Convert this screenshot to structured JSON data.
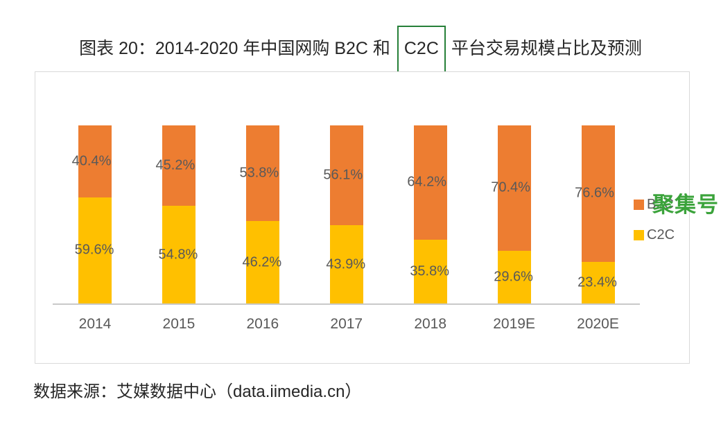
{
  "title": {
    "prefix": "图表 20：2014-2020 年中国网购 B2C 和 ",
    "boxed": "C2C",
    "suffix": " 平台交易规模占比及预测"
  },
  "watermark": "聚集号",
  "source": "数据来源：艾媒数据中心（data.iimedia.cn）",
  "legend": [
    {
      "label": "B2C",
      "color": "#ED7D31"
    },
    {
      "label": "C2C",
      "color": "#FFC000"
    }
  ],
  "colors": {
    "b2c_orange": "#ED7D31",
    "c2c_yellow": "#FFC000",
    "label_gray": "#595959",
    "title_box_green": "#267f38",
    "watermark_green": "#3ba33b",
    "axis_gray": "#c9c9c9",
    "frame_gray": "#d9d9d9"
  },
  "chart_data": {
    "type": "bar",
    "stacked": true,
    "percent_stacked": true,
    "title": "图表 20：2014-2020 年中国网购 B2C 和 C2C 平台交易规模占比及预测",
    "categories": [
      "2014",
      "2015",
      "2016",
      "2017",
      "2018",
      "2019E",
      "2020E"
    ],
    "series": [
      {
        "name": "B2C",
        "color": "#ED7D31",
        "values": [
          40.4,
          45.2,
          53.8,
          56.1,
          64.2,
          70.4,
          76.6
        ]
      },
      {
        "name": "C2C",
        "color": "#FFC000",
        "values": [
          59.6,
          54.8,
          46.2,
          43.9,
          35.8,
          29.6,
          23.4
        ]
      }
    ],
    "value_suffix": "%",
    "ylim": [
      0,
      100
    ],
    "grid": false,
    "legend_position": "right",
    "data_labels": "inside-center",
    "source": "数据来源：艾媒数据中心（data.iimedia.cn）"
  }
}
